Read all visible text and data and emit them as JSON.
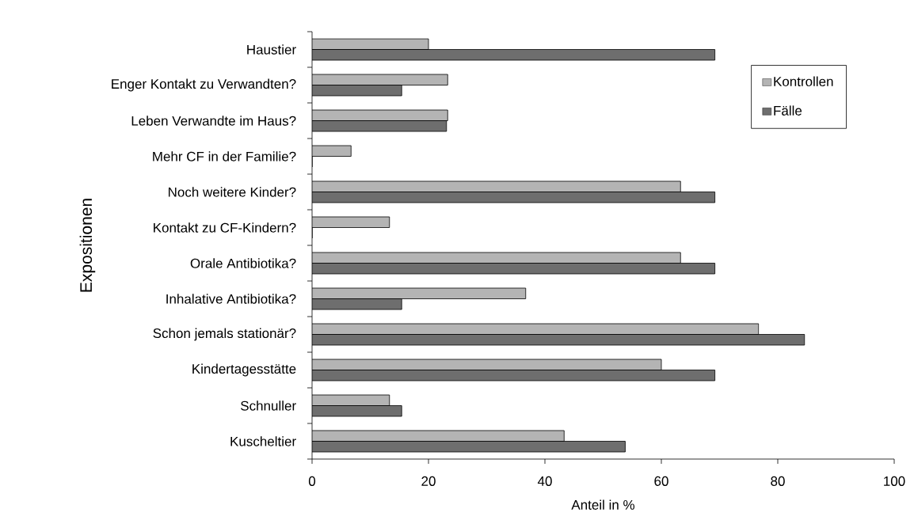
{
  "chart_data": {
    "type": "bar",
    "orientation": "horizontal",
    "xlabel": "Anteil in %",
    "ylabel": "Expositionen",
    "categories": [
      "Haustier",
      "Enger Kontakt zu Verwandten?",
      "Leben Verwandte im Haus?",
      "Mehr CF in der Familie?",
      "Noch weitere Kinder?",
      "Kontakt zu CF-Kindern?",
      "Orale Antibiotika?",
      "Inhalative Antibiotika?",
      "Schon jemals stationär?",
      "Kindertagesstätte",
      "Schnuller",
      "Kuscheltier"
    ],
    "series": [
      {
        "name": "Kontrollen",
        "color": "#b4b4b4",
        "values": [
          20,
          23.3,
          23.3,
          6.7,
          63.3,
          13.3,
          63.3,
          36.7,
          76.7,
          60,
          13.3,
          43.3
        ]
      },
      {
        "name": "Fälle",
        "color": "#6e6e6e",
        "values": [
          69.2,
          15.4,
          23.1,
          0,
          69.2,
          0,
          69.2,
          15.4,
          84.6,
          69.2,
          15.4,
          53.8
        ]
      }
    ],
    "xlim": [
      0,
      100
    ],
    "xticks": [
      0,
      20,
      40,
      60,
      80,
      100
    ],
    "legend": "right"
  }
}
